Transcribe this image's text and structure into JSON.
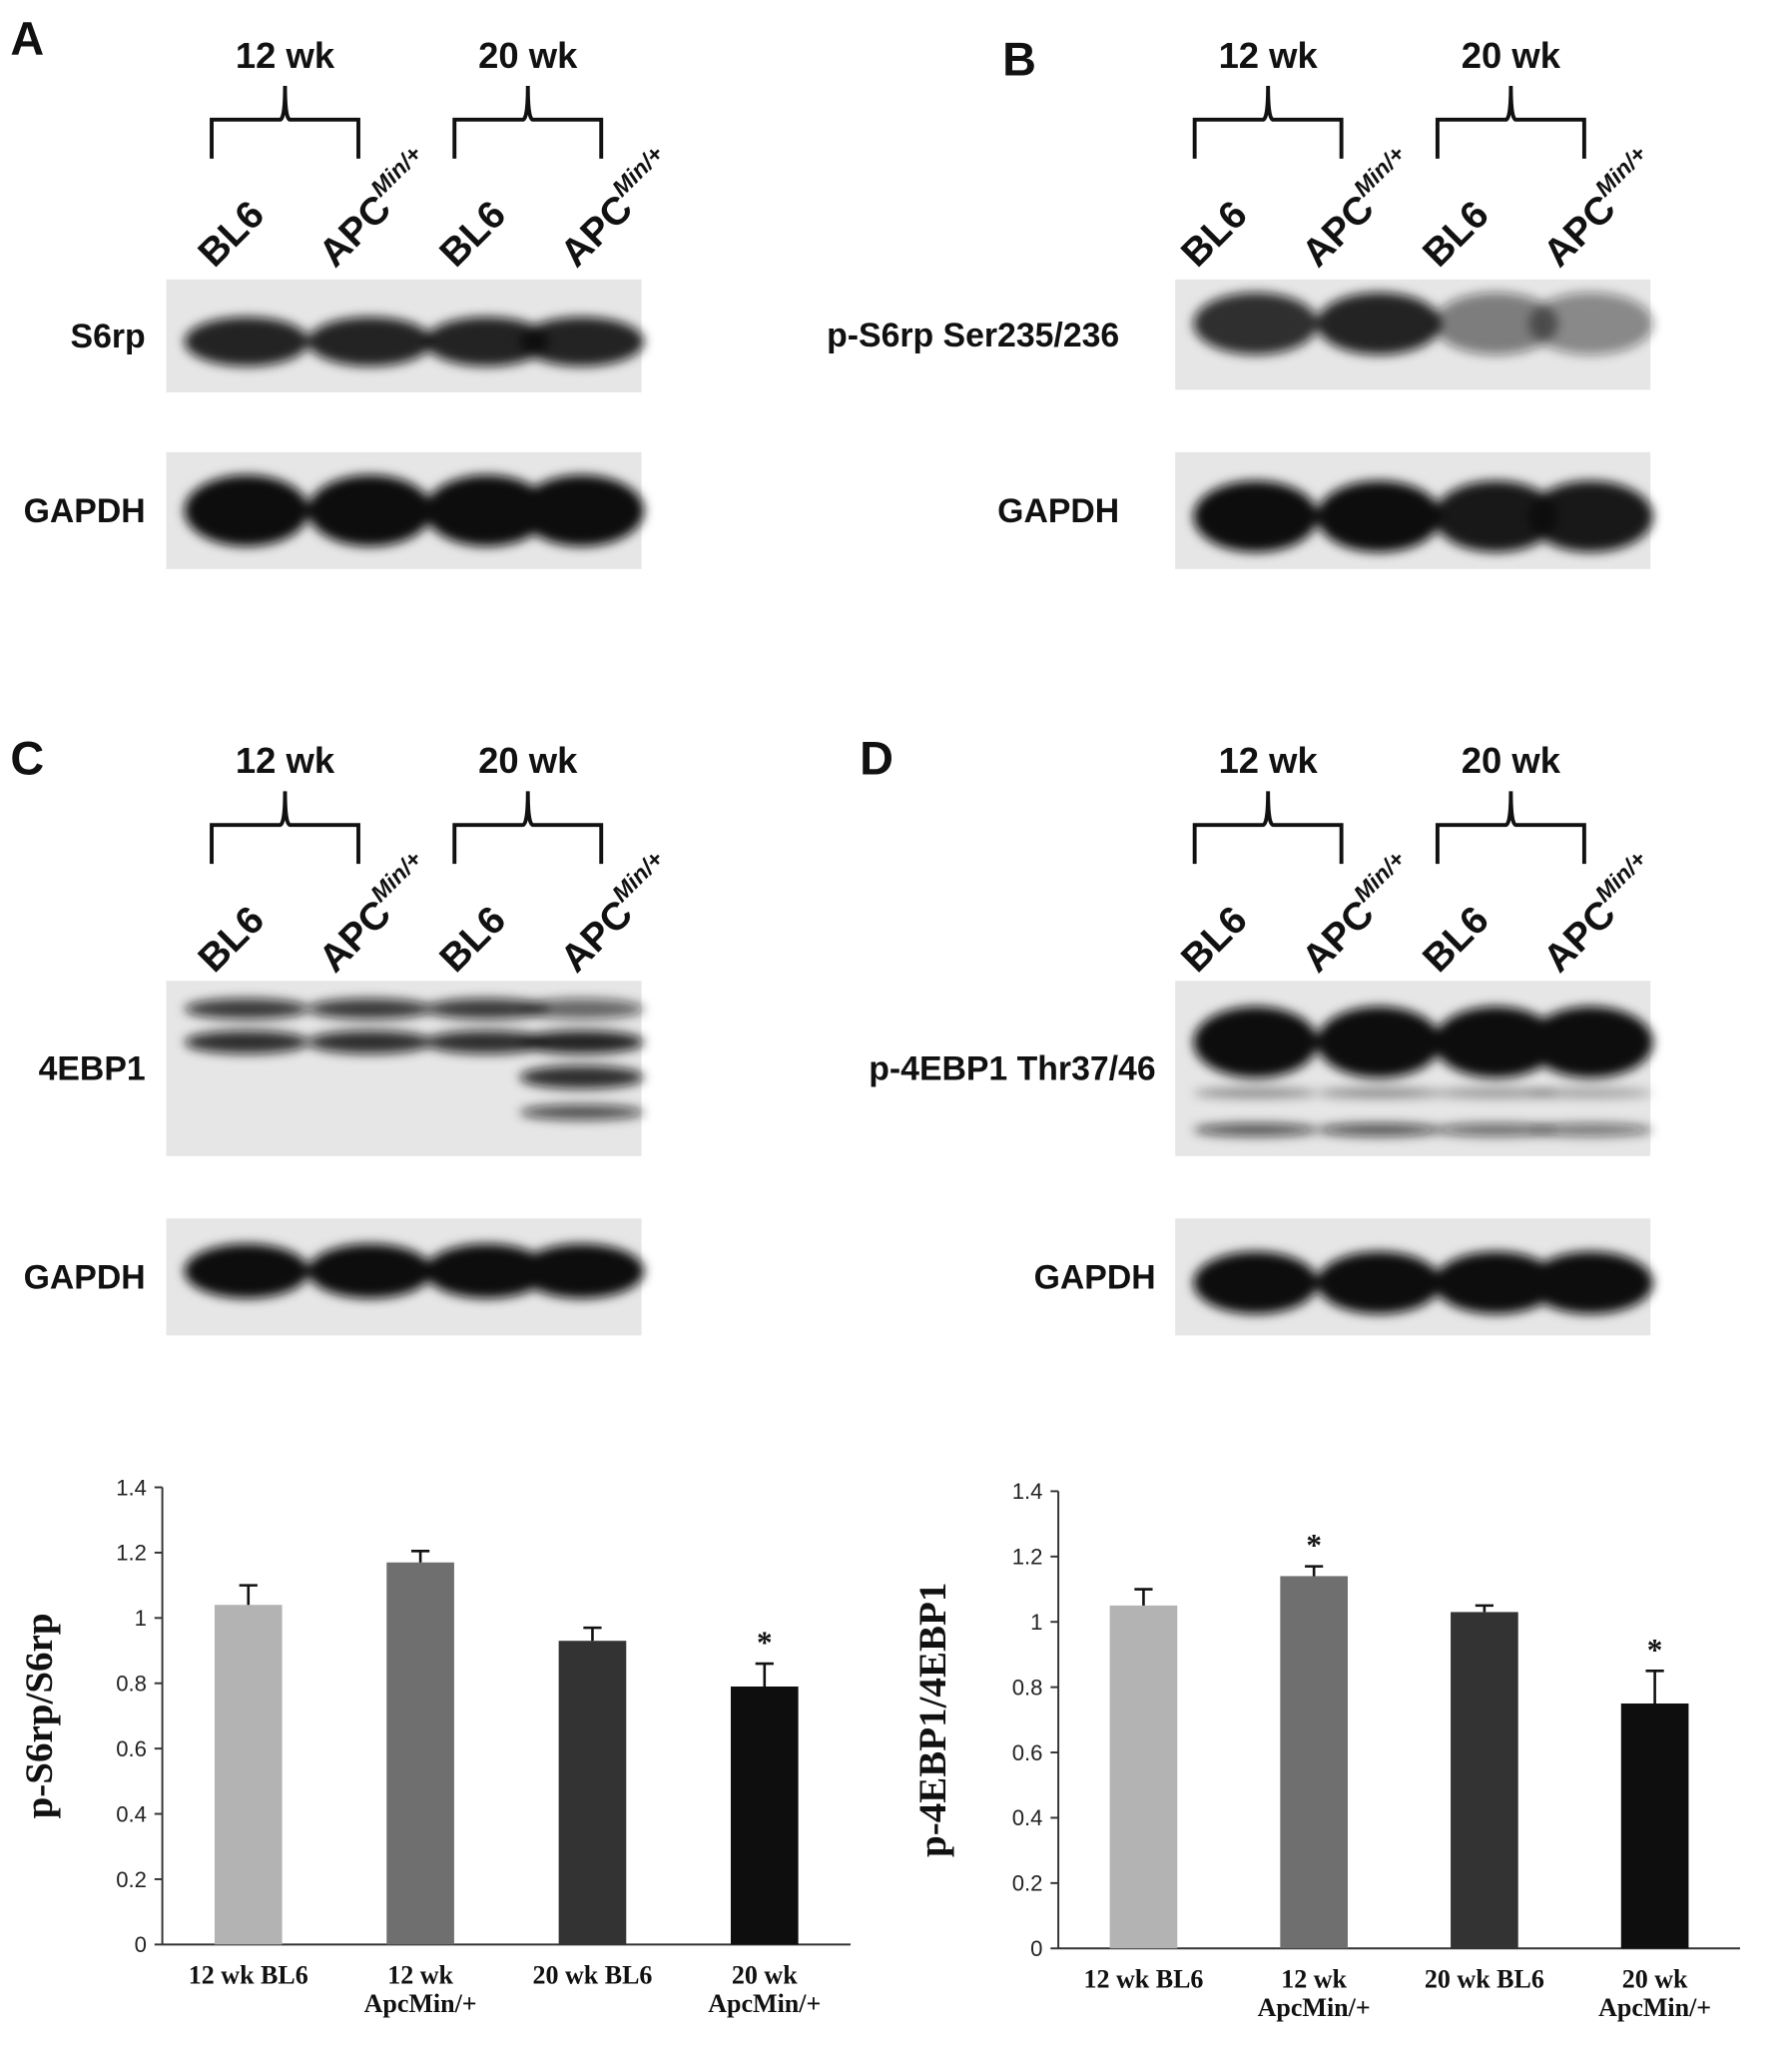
{
  "panels": [
    {
      "letter": "A",
      "groups": [
        "12 wk",
        "20 wk"
      ],
      "lanes": [
        {
          "name": "BL6"
        },
        {
          "name": "APC",
          "sup": "Min/+"
        },
        {
          "name": "BL6"
        },
        {
          "name": "APC",
          "sup": "Min/+"
        }
      ],
      "blots": [
        "S6rp",
        "GAPDH"
      ]
    },
    {
      "letter": "B",
      "groups": [
        "12 wk",
        "20 wk"
      ],
      "lanes": [
        {
          "name": "BL6"
        },
        {
          "name": "APC",
          "sup": "Min/+"
        },
        {
          "name": "BL6"
        },
        {
          "name": "APC",
          "sup": "Min/+"
        }
      ],
      "blots": [
        "p-S6rp Ser235/236",
        "GAPDH"
      ]
    },
    {
      "letter": "C",
      "groups": [
        "12 wk",
        "20 wk"
      ],
      "lanes": [
        {
          "name": "BL6"
        },
        {
          "name": "APC",
          "sup": "Min/+"
        },
        {
          "name": "BL6"
        },
        {
          "name": "APC",
          "sup": "Min/+"
        }
      ],
      "blots": [
        "4EBP1",
        "GAPDH"
      ]
    },
    {
      "letter": "D",
      "groups": [
        "12 wk",
        "20 wk"
      ],
      "lanes": [
        {
          "name": "BL6"
        },
        {
          "name": "APC",
          "sup": "Min/+"
        },
        {
          "name": "BL6"
        },
        {
          "name": "APC",
          "sup": "Min/+"
        }
      ],
      "blots": [
        "p-4EBP1 Thr37/46",
        "GAPDH"
      ]
    }
  ],
  "chart_data": [
    {
      "type": "bar",
      "y_label": "p-S6rp/S6rp",
      "categories": [
        "12 wk BL6",
        "12 wk\nApcMin/+",
        "20 wk BL6",
        "20 wk\nApcMin/+"
      ],
      "series": [
        {
          "colors": [
            "#b3b3b3",
            "#6f6f6f",
            "#333333",
            "#0e0e0e"
          ],
          "values": [
            1.04,
            1.17,
            0.93,
            0.79
          ],
          "errors": [
            0.06,
            0.035,
            0.04,
            0.07
          ]
        }
      ],
      "annotations": [
        {
          "text": "*",
          "index": 3
        }
      ],
      "ylim": [
        0,
        1.4
      ],
      "yticks": [
        0,
        0.2,
        0.4,
        0.6,
        0.8,
        1,
        1.2,
        1.4
      ]
    },
    {
      "type": "bar",
      "y_label": "p-4EBP1/4EBP1",
      "categories": [
        "12 wk BL6",
        "12 wk\nApcMin/+",
        "20 wk BL6",
        "20 wk\nApcMin/+"
      ],
      "series": [
        {
          "colors": [
            "#b3b3b3",
            "#6f6f6f",
            "#333333",
            "#0e0e0e"
          ],
          "values": [
            1.05,
            1.14,
            1.03,
            0.75
          ],
          "errors": [
            0.05,
            0.03,
            0.02,
            0.1
          ]
        }
      ],
      "annotations": [
        {
          "text": "*",
          "index": 1
        },
        {
          "text": "*",
          "index": 3
        }
      ],
      "ylim": [
        0,
        1.4
      ],
      "yticks": [
        0,
        0.2,
        0.4,
        0.6,
        0.8,
        1,
        1.2,
        1.4
      ]
    }
  ]
}
